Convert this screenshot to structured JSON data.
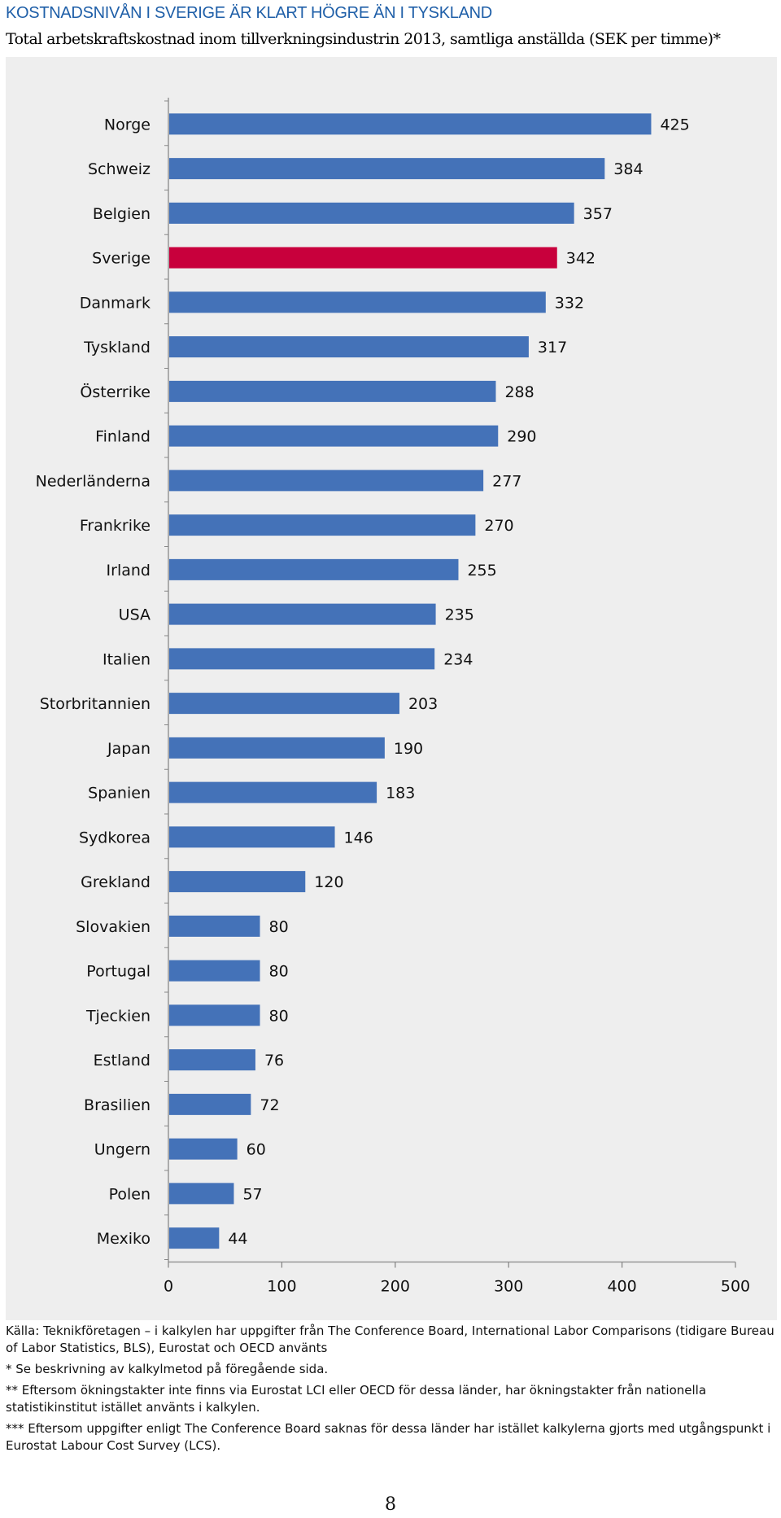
{
  "heading": "KOSTNADSNIVÅN I SVERIGE ÄR KLART HÖGRE ÄN I TYSKLAND",
  "subheading": "Total arbetskraftskostnad inom tillverkningsindustrin 2013, samtliga anställda (SEK per timme)*",
  "colors": {
    "bar": "#4472b8",
    "highlight": "#c8003c",
    "heading": "#1f5fa8",
    "background": "#eeeeee"
  },
  "chart_data": {
    "type": "bar",
    "orientation": "horizontal",
    "categories": [
      "Norge",
      "Schweiz",
      "Belgien",
      "Sverige",
      "Danmark",
      "Tyskland",
      "Österrike",
      "Finland",
      "Nederländerna",
      "Frankrike",
      "Irland",
      "USA",
      "Italien",
      "Storbritannien",
      "Japan",
      "Spanien",
      "Sydkorea",
      "Grekland",
      "Slovakien",
      "Portugal",
      "Tjeckien",
      "Estland",
      "Brasilien",
      "Ungern",
      "Polen",
      "Mexiko"
    ],
    "values": [
      425,
      384,
      357,
      342,
      332,
      317,
      288,
      290,
      277,
      270,
      255,
      235,
      234,
      203,
      190,
      183,
      146,
      120,
      80,
      80,
      80,
      76,
      72,
      60,
      57,
      44
    ],
    "highlight_category": "Sverige",
    "xlim": [
      0,
      500
    ],
    "ticks": [
      0,
      100,
      200,
      300,
      400,
      500
    ],
    "data_labels": true,
    "grid": false
  },
  "notes": {
    "source": "Källa: Teknikföretagen – i kalkylen har uppgifter från The Conference Board, International Labor Comparisons (tidigare Bureau of Labor Statistics, BLS), Eurostat och OECD använts",
    "note1": "* Se beskrivning av kalkylmetod på föregående sida.",
    "note2": "** Eftersom ökningstakter inte finns via Eurostat LCI eller OECD för dessa länder, har ökningstakter från nationella statistikinstitut istället använts i kalkylen.",
    "note3": "*** Eftersom uppgifter enligt The Conference Board saknas för dessa länder har istället kalkylerna gjorts med utgångspunkt i Eurostat Labour Cost Survey (LCS)."
  },
  "page_number": "8"
}
